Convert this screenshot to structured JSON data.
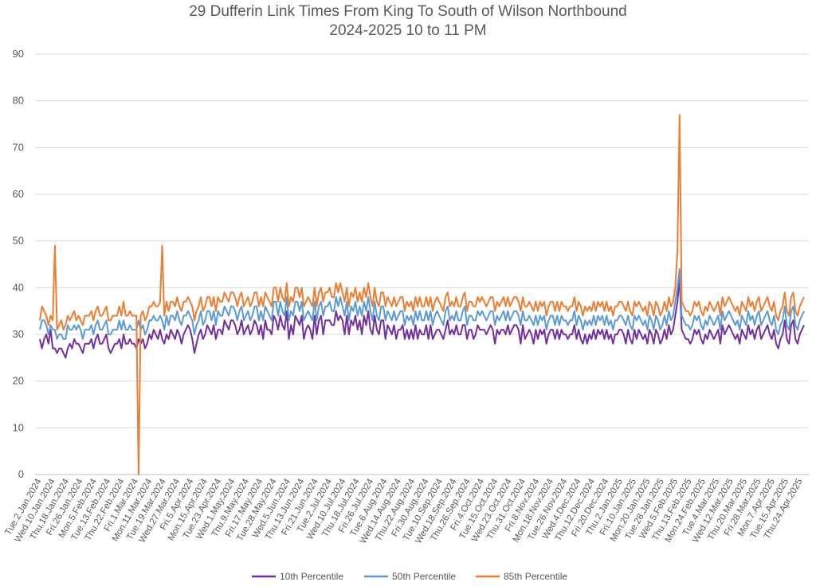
{
  "chart_data": {
    "type": "line",
    "title": "29 Dufferin Link Times From King To South of Wilson Northbound",
    "subtitle": "2024-2025 10 to 11 PM",
    "xlabel": "",
    "ylabel": "",
    "ylim": [
      0,
      90
    ],
    "yticks": [
      0,
      10,
      20,
      30,
      40,
      50,
      60,
      70,
      80,
      90
    ],
    "grid": true,
    "legend_position": "bottom",
    "x_tick_labels": [
      "Tue.2.Jan.2024",
      "Wed.10.Jan.2024",
      "Thu.18.Jan.2024",
      "Fri.26.Jan.2024",
      "Mon.5.Feb.2024",
      "Tue.13.Feb.2024",
      "Thu.22.Feb.2024",
      "Fri.1.Mar.2024",
      "Mon.11.Mar.2024",
      "Tue.19.Mar.2024",
      "Wed.27.Mar.2024",
      "Fri.5.Apr.2024",
      "Mon.15.Apr.2024",
      "Tue.23.Apr.2024",
      "Wed.1.May.2024",
      "Thu.9.May.2024",
      "Fri.17.May.2024",
      "Tue.28.May.2024",
      "Wed.5.Jun.2024",
      "Thu.13.Jun.2024",
      "Fri.21.Jun.2024",
      "Tue.2.Jul.2024",
      "Wed.10.Jul.2024",
      "Thu.18.Jul.2024",
      "Fri.26.Jul.2024",
      "Tue.6.Aug.2024",
      "Wed.14.Aug.2024",
      "Thu.22.Aug.2024",
      "Fri.30.Aug.2024",
      "Tue.10.Sep.2024",
      "Wed.18.Sep.2024",
      "Thu.26.Sep.2024",
      "Fri.4.Oct.2024",
      "Tue.15.Oct.2024",
      "Wed.23.Oct.2024",
      "Thu.31.Oct.2024",
      "Fri.8.Nov.2024",
      "Mon.18.Nov.2024",
      "Tue.26.Nov.2024",
      "Wed.4.Dec.2024",
      "Thu.12.Dec.2024",
      "Fri.20.Dec.2024",
      "Thu.2.Jan.2025",
      "Fri.10.Jan.2025",
      "Mon.20.Jan.2025",
      "Tue.28.Jan.2025",
      "Wed.5.Feb.2025",
      "Thu.13.Feb.2025",
      "Mon.24.Feb.2025",
      "Tue.4.Mar.2025",
      "Wed.12.Mar.2025",
      "Thu.20.Mar.2025",
      "Fri.28.Mar.2025",
      "Mon.7.Apr.2025",
      "Tue.15.Apr.2025",
      "Thu.24.Apr.2025"
    ],
    "series": [
      {
        "name": "10th Percentile",
        "color": "#7030A0",
        "values": [
          29,
          27,
          29,
          30,
          28,
          31,
          27,
          27,
          26,
          27,
          27,
          26,
          25,
          27,
          28,
          27,
          29,
          28,
          28,
          27,
          26,
          28,
          28,
          28,
          29,
          27,
          29,
          30,
          28,
          28,
          29,
          30,
          27,
          26,
          27,
          28,
          28,
          29,
          27,
          30,
          28,
          28,
          29,
          28,
          28,
          27,
          29,
          28,
          29,
          27,
          28,
          30,
          29,
          31,
          30,
          29,
          31,
          29,
          28,
          30,
          29,
          31,
          30,
          29,
          31,
          30,
          28,
          30,
          31,
          32,
          31,
          29,
          26,
          28,
          30,
          31,
          29,
          30,
          32,
          31,
          30,
          32,
          29,
          31,
          31,
          30,
          33,
          32,
          31,
          33,
          33,
          32,
          30,
          31,
          33,
          30,
          31,
          32,
          30,
          31,
          33,
          32,
          30,
          32,
          29,
          33,
          31,
          31,
          30,
          34,
          33,
          31,
          34,
          32,
          31,
          35,
          29,
          32,
          30,
          34,
          33,
          32,
          34,
          29,
          31,
          32,
          31,
          29,
          34,
          30,
          33,
          34,
          30,
          33,
          33,
          33,
          32,
          32,
          35,
          33,
          34,
          33,
          30,
          34,
          30,
          33,
          32,
          34,
          31,
          33,
          30,
          34,
          32,
          35,
          31,
          30,
          34,
          31,
          30,
          33,
          33,
          29,
          32,
          31,
          30,
          32,
          29,
          31,
          31,
          32,
          29,
          31,
          29,
          31,
          29,
          32,
          29,
          31,
          30,
          30,
          32,
          29,
          32,
          29,
          30,
          31,
          31,
          30,
          29,
          31,
          33,
          30,
          31,
          30,
          32,
          30,
          30,
          32,
          32,
          29,
          31,
          31,
          29,
          30,
          32,
          31,
          31,
          31,
          30,
          31,
          32,
          31,
          28,
          31,
          30,
          31,
          31,
          30,
          32,
          30,
          31,
          32,
          32,
          31,
          28,
          32,
          29,
          30,
          31,
          30,
          28,
          31,
          29,
          31,
          30,
          31,
          28,
          30,
          31,
          31,
          29,
          31,
          29,
          31,
          30,
          30,
          29,
          30,
          30,
          32,
          29,
          31,
          29,
          28,
          30,
          28,
          30,
          29,
          31,
          29,
          31,
          30,
          31,
          29,
          31,
          29,
          30,
          28,
          30,
          30,
          31,
          31,
          30,
          28,
          31,
          29,
          28,
          31,
          29,
          31,
          30,
          29,
          30,
          28,
          31,
          30,
          28,
          31,
          30,
          28,
          29,
          31,
          29,
          32,
          30,
          31,
          34,
          37,
          42,
          31,
          30,
          29,
          29,
          28,
          29,
          31,
          30,
          31,
          29,
          28,
          30,
          29,
          31,
          30,
          29,
          30,
          31,
          28,
          32,
          30,
          31,
          32,
          31,
          30,
          29,
          30,
          28,
          31,
          30,
          29,
          32,
          30,
          31,
          29,
          31,
          32,
          29,
          30,
          31,
          32,
          30,
          29,
          31,
          28,
          27,
          29,
          30,
          33,
          29,
          28,
          32,
          33,
          29,
          28,
          30,
          31,
          32
        ]
      },
      {
        "name": "50th Percentile",
        "color": "#5B9BD5",
        "values": [
          31,
          33,
          33,
          32,
          30,
          32,
          31,
          31,
          29,
          30,
          30,
          29,
          29,
          32,
          31,
          31,
          32,
          31,
          32,
          31,
          29,
          31,
          31,
          31,
          32,
          30,
          32,
          33,
          31,
          31,
          32,
          33,
          30,
          30,
          31,
          31,
          31,
          33,
          31,
          33,
          31,
          31,
          32,
          31,
          31,
          31,
          33,
          31,
          32,
          30,
          31,
          33,
          33,
          34,
          33,
          33,
          34,
          33,
          31,
          34,
          32,
          34,
          34,
          33,
          35,
          33,
          32,
          34,
          34,
          35,
          34,
          33,
          30,
          32,
          33,
          35,
          32,
          33,
          35,
          35,
          33,
          35,
          32,
          35,
          34,
          34,
          36,
          35,
          34,
          36,
          36,
          35,
          33,
          35,
          36,
          33,
          34,
          35,
          33,
          34,
          36,
          36,
          33,
          35,
          33,
          36,
          35,
          34,
          33,
          37,
          37,
          34,
          37,
          35,
          34,
          38,
          33,
          35,
          34,
          37,
          37,
          35,
          37,
          33,
          34,
          35,
          34,
          33,
          37,
          33,
          36,
          37,
          34,
          36,
          36,
          37,
          35,
          35,
          38,
          36,
          38,
          36,
          34,
          37,
          33,
          36,
          35,
          37,
          34,
          36,
          34,
          37,
          35,
          38,
          35,
          33,
          37,
          34,
          33,
          36,
          36,
          33,
          35,
          34,
          33,
          35,
          33,
          34,
          35,
          35,
          32,
          34,
          33,
          34,
          32,
          35,
          33,
          35,
          33,
          33,
          35,
          33,
          35,
          32,
          34,
          35,
          34,
          33,
          32,
          35,
          36,
          33,
          34,
          33,
          35,
          33,
          33,
          35,
          36,
          32,
          34,
          34,
          33,
          33,
          35,
          34,
          35,
          34,
          33,
          34,
          35,
          35,
          32,
          34,
          33,
          34,
          35,
          33,
          35,
          33,
          34,
          35,
          35,
          34,
          32,
          35,
          33,
          33,
          34,
          33,
          32,
          34,
          32,
          34,
          33,
          34,
          31,
          33,
          34,
          34,
          32,
          34,
          32,
          34,
          33,
          33,
          32,
          33,
          33,
          35,
          32,
          34,
          33,
          31,
          33,
          32,
          33,
          32,
          34,
          32,
          34,
          33,
          34,
          32,
          34,
          32,
          33,
          31,
          33,
          33,
          34,
          34,
          33,
          32,
          34,
          32,
          31,
          34,
          33,
          34,
          33,
          32,
          33,
          31,
          34,
          33,
          31,
          34,
          33,
          31,
          32,
          34,
          32,
          35,
          33,
          34,
          37,
          40,
          44,
          34,
          33,
          32,
          32,
          31,
          32,
          34,
          33,
          34,
          32,
          31,
          33,
          32,
          34,
          33,
          32,
          33,
          34,
          31,
          35,
          33,
          34,
          35,
          34,
          33,
          32,
          33,
          31,
          34,
          33,
          32,
          35,
          33,
          34,
          32,
          34,
          35,
          32,
          33,
          34,
          35,
          33,
          32,
          34,
          31,
          30,
          32,
          33,
          36,
          32,
          31,
          35,
          36,
          32,
          31,
          33,
          34,
          35
        ]
      },
      {
        "name": "85th Percentile",
        "color": "#ED7D31",
        "values": [
          33,
          36,
          35,
          34,
          32,
          34,
          33,
          49,
          31,
          32,
          33,
          31,
          32,
          34,
          33,
          34,
          35,
          33,
          34,
          33,
          32,
          34,
          34,
          34,
          35,
          33,
          35,
          36,
          34,
          34,
          35,
          36,
          33,
          33,
          34,
          34,
          34,
          36,
          34,
          37,
          34,
          34,
          35,
          34,
          34,
          34,
          0,
          34,
          35,
          33,
          34,
          36,
          36,
          37,
          36,
          36,
          37,
          49,
          34,
          37,
          35,
          37,
          37,
          36,
          38,
          36,
          35,
          37,
          37,
          38,
          37,
          36,
          33,
          35,
          36,
          38,
          35,
          36,
          38,
          38,
          36,
          38,
          35,
          38,
          37,
          37,
          39,
          38,
          37,
          39,
          39,
          38,
          36,
          38,
          39,
          36,
          37,
          38,
          36,
          37,
          39,
          39,
          36,
          38,
          36,
          39,
          38,
          37,
          36,
          40,
          40,
          37,
          40,
          38,
          37,
          41,
          36,
          38,
          37,
          40,
          40,
          38,
          40,
          36,
          37,
          38,
          37,
          36,
          40,
          36,
          39,
          40,
          37,
          39,
          39,
          40,
          38,
          38,
          41,
          39,
          41,
          39,
          37,
          40,
          36,
          39,
          38,
          40,
          37,
          39,
          37,
          40,
          38,
          41,
          38,
          36,
          40,
          37,
          36,
          39,
          39,
          36,
          38,
          37,
          36,
          38,
          36,
          37,
          38,
          38,
          35,
          37,
          36,
          37,
          35,
          38,
          36,
          38,
          36,
          36,
          38,
          36,
          38,
          35,
          37,
          38,
          37,
          36,
          35,
          38,
          39,
          36,
          37,
          36,
          38,
          36,
          36,
          38,
          39,
          35,
          37,
          37,
          36,
          36,
          38,
          37,
          38,
          37,
          36,
          37,
          38,
          38,
          35,
          37,
          36,
          37,
          38,
          36,
          38,
          36,
          37,
          38,
          38,
          37,
          35,
          38,
          36,
          36,
          37,
          36,
          35,
          37,
          35,
          37,
          36,
          37,
          34,
          36,
          37,
          37,
          35,
          37,
          35,
          37,
          36,
          36,
          35,
          36,
          36,
          38,
          35,
          37,
          36,
          34,
          36,
          35,
          36,
          35,
          37,
          35,
          37,
          36,
          37,
          35,
          37,
          35,
          36,
          34,
          36,
          36,
          37,
          37,
          36,
          35,
          37,
          35,
          34,
          37,
          36,
          37,
          36,
          35,
          36,
          34,
          37,
          36,
          34,
          37,
          36,
          34,
          35,
          37,
          35,
          38,
          36,
          37,
          40,
          48,
          77,
          37,
          36,
          35,
          35,
          34,
          35,
          37,
          36,
          37,
          35,
          34,
          36,
          35,
          37,
          36,
          35,
          36,
          37,
          34,
          38,
          36,
          37,
          38,
          37,
          36,
          35,
          36,
          34,
          37,
          36,
          35,
          38,
          36,
          37,
          35,
          37,
          38,
          35,
          36,
          37,
          38,
          36,
          35,
          37,
          34,
          33,
          35,
          36,
          39,
          35,
          34,
          38,
          39,
          35,
          34,
          36,
          37,
          38
        ]
      }
    ]
  }
}
